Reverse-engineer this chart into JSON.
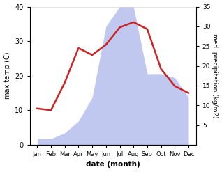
{
  "months": [
    "Jan",
    "Feb",
    "Mar",
    "Apr",
    "May",
    "Jun",
    "Jul",
    "Aug",
    "Sep",
    "Oct",
    "Nov",
    "Dec"
  ],
  "temperature": [
    10.5,
    10.0,
    18.0,
    28.0,
    26.0,
    29.0,
    34.0,
    35.5,
    33.5,
    22.0,
    17.0,
    15.0
  ],
  "precipitation": [
    1.5,
    1.5,
    3.0,
    6.0,
    12.0,
    30.0,
    35.0,
    35.0,
    18.0,
    18.0,
    17.0,
    12.0
  ],
  "temp_color": "#cc2222",
  "precip_color": "#c0c8f0",
  "background_color": "#ffffff",
  "xlabel": "date (month)",
  "ylabel_left": "max temp (C)",
  "ylabel_right": "med. precipitation (kg/m2)",
  "ylim_left": [
    0,
    40
  ],
  "ylim_right": [
    0,
    35
  ],
  "yticks_left": [
    0,
    10,
    20,
    30,
    40
  ],
  "yticks_right": [
    5,
    10,
    15,
    20,
    25,
    30,
    35
  ],
  "temp_linewidth": 1.8,
  "figsize": [
    3.18,
    2.47
  ],
  "dpi": 100
}
